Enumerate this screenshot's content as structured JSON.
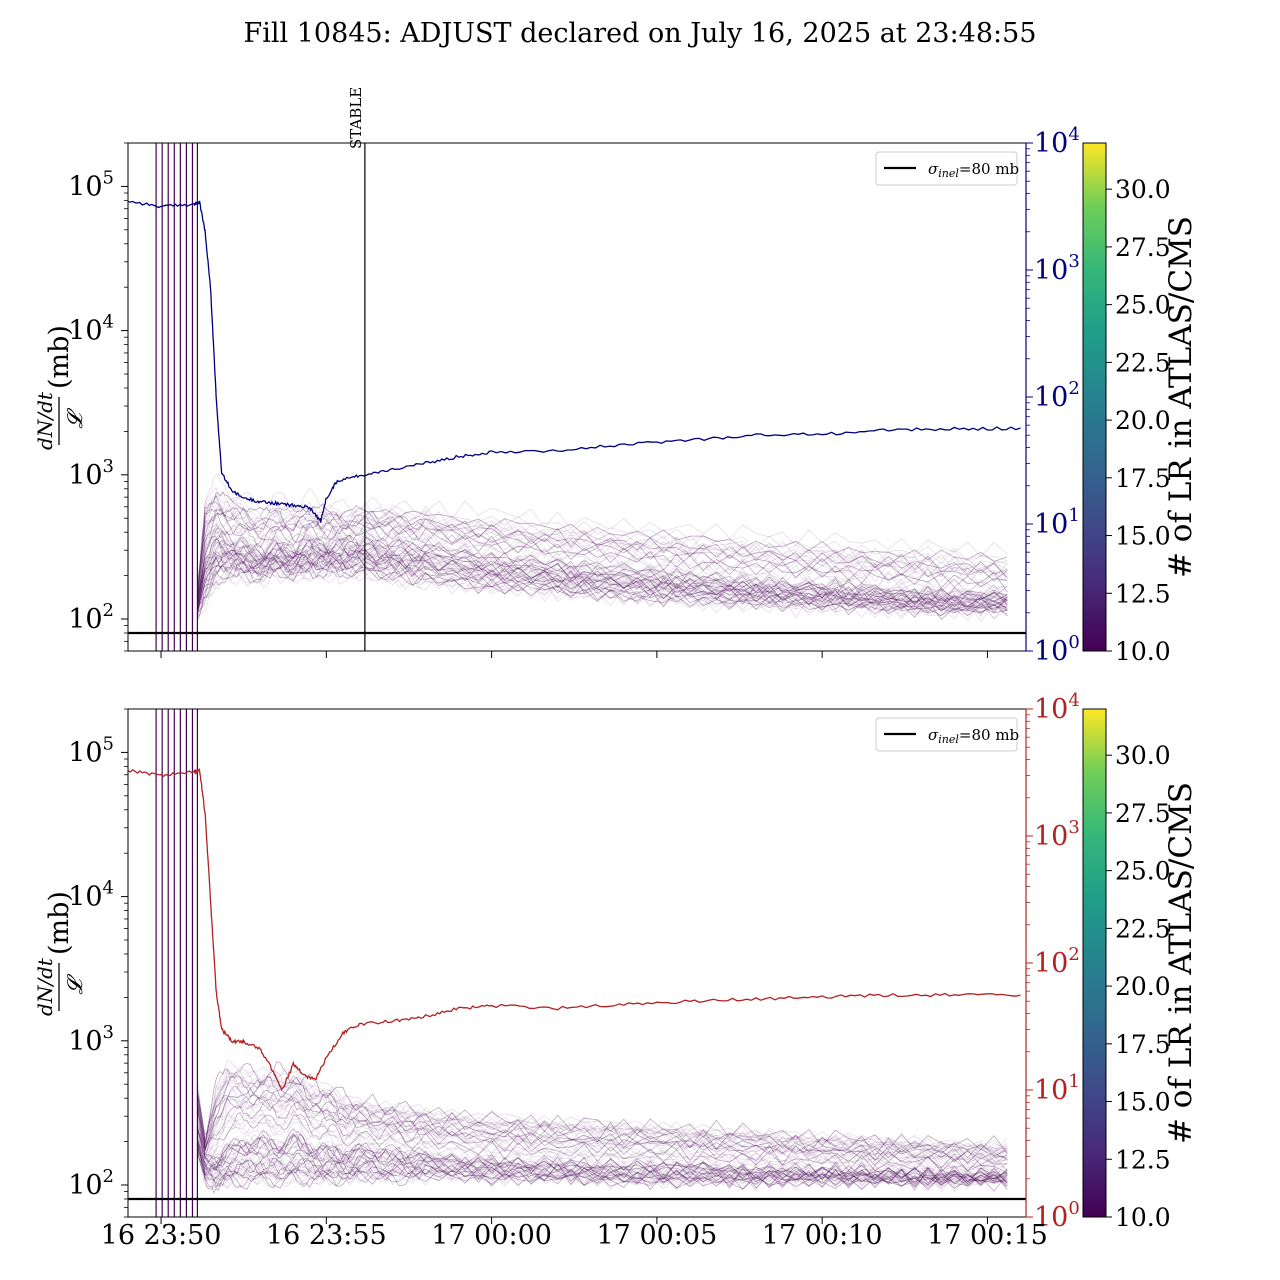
{
  "title": "Fill 10845: ADJUST declared on July 16, 2025 at 23:48:55",
  "colors": {
    "top_series": "#00007f",
    "bottom_series": "#b22222",
    "lr_lines": "#440154",
    "sigma_line": "#000000",
    "stable_line": "#000000"
  },
  "colorbar": {
    "label": "# of LR in ATLAS/CMS",
    "min": 10.0,
    "max": 32.0,
    "ticks": [
      "10.0",
      "12.5",
      "15.0",
      "17.5",
      "20.0",
      "22.5",
      "25.0",
      "27.5",
      "30.0"
    ],
    "tick_values": [
      10.0,
      12.5,
      15.0,
      17.5,
      20.0,
      22.5,
      25.0,
      27.5,
      30.0
    ],
    "colormap": "viridis"
  },
  "chart_data": [
    {
      "type": "line",
      "panel": "top",
      "ylabel_fraction_num": "dN/dt",
      "ylabel_fraction_den": "𝓛",
      "ylabel_unit": "(mb)",
      "yscale": "log",
      "ylim": [
        60,
        200000
      ],
      "ytick_bases": [
        "10",
        "10",
        "10",
        "10"
      ],
      "ytick_exps": [
        "2",
        "3",
        "4",
        "5"
      ],
      "ytick_values": [
        100,
        1000,
        10000,
        100000
      ],
      "right_yscale": "log",
      "right_ylim": [
        1,
        10000
      ],
      "right_tick_bases": [
        "10",
        "10",
        "10",
        "10",
        "10"
      ],
      "right_tick_exps": [
        "0",
        "1",
        "2",
        "3",
        "4"
      ],
      "right_tick_values": [
        1,
        10,
        100,
        1000,
        10000
      ],
      "right_color": "#00007f",
      "xlim": [
        "2025-07-16 23:49:00",
        "2025-07-17 00:16:10"
      ],
      "xtick_values": [
        "2025-07-16 23:50:00",
        "2025-07-16 23:55:00",
        "2025-07-17 00:00:00",
        "2025-07-17 00:05:00",
        "2025-07-17 00:10:00",
        "2025-07-17 00:15:00"
      ],
      "xtick_labels": [],
      "legend": {
        "label_sym": "σ",
        "label_sub": "inel",
        "label_rest": "=80 mb",
        "position": "upper-right"
      },
      "sigma_inel": 80,
      "stable_marker": {
        "label": "STABLE",
        "time": "2025-07-16 23:56:10"
      },
      "vertical_lines_times": [
        "2025-07-16 23:49:51",
        "2025-07-16 23:50:02",
        "2025-07-16 23:50:13",
        "2025-07-16 23:50:24",
        "2025-07-16 23:50:35",
        "2025-07-16 23:50:46",
        "2025-07-16 23:50:57",
        "2025-07-16 23:51:06"
      ],
      "series_right": {
        "color": "#00007f",
        "times": [
          "2025-07-16 23:49:00",
          "2025-07-16 23:50:00",
          "2025-07-16 23:51:00",
          "2025-07-16 23:51:10",
          "2025-07-16 23:51:20",
          "2025-07-16 23:51:30",
          "2025-07-16 23:51:40",
          "2025-07-16 23:51:50",
          "2025-07-16 23:52:10",
          "2025-07-16 23:52:30",
          "2025-07-16 23:53:00",
          "2025-07-16 23:53:30",
          "2025-07-16 23:54:00",
          "2025-07-16 23:54:30",
          "2025-07-16 23:54:50",
          "2025-07-16 23:55:00",
          "2025-07-16 23:55:20",
          "2025-07-16 23:56:00",
          "2025-07-16 23:57:00",
          "2025-07-16 23:58:00",
          "2025-07-16 23:59:00",
          "2025-07-17 00:00:00",
          "2025-07-17 00:02:00",
          "2025-07-17 00:04:00",
          "2025-07-17 00:06:00",
          "2025-07-17 00:08:00",
          "2025-07-17 00:10:00",
          "2025-07-17 00:12:00",
          "2025-07-17 00:14:00",
          "2025-07-17 00:16:00"
        ],
        "values": [
          3500,
          3150,
          3300,
          3400,
          2000,
          700,
          100,
          25,
          18,
          16,
          15,
          14.5,
          14,
          13.5,
          10.5,
          16,
          22,
          24,
          27,
          30,
          34,
          37,
          38,
          42,
          46,
          50,
          51,
          55,
          56,
          57
        ]
      },
      "lr_band": {
        "times": [
          "2025-07-16 23:51:06",
          "2025-07-16 23:51:20",
          "2025-07-16 23:51:40",
          "2025-07-16 23:52:00",
          "2025-07-16 23:52:30",
          "2025-07-16 23:53:00",
          "2025-07-16 23:53:30",
          "2025-07-16 23:54:00",
          "2025-07-16 23:54:30",
          "2025-07-16 23:55:00",
          "2025-07-16 23:55:30",
          "2025-07-16 23:56:00",
          "2025-07-16 23:57:00",
          "2025-07-16 23:58:00",
          "2025-07-17 00:00:00",
          "2025-07-17 00:02:00",
          "2025-07-17 00:04:00",
          "2025-07-17 00:06:00",
          "2025-07-17 00:08:00",
          "2025-07-17 00:10:00",
          "2025-07-17 00:12:00",
          "2025-07-17 00:14:00",
          "2025-07-17 00:16:00"
        ],
        "low": [
          110,
          130,
          180,
          200,
          200,
          190,
          210,
          200,
          210,
          210,
          200,
          210,
          190,
          180,
          160,
          150,
          140,
          130,
          125,
          120,
          115,
          110,
          115
        ],
        "median": [
          130,
          300,
          400,
          360,
          320,
          290,
          320,
          300,
          340,
          330,
          340,
          350,
          330,
          320,
          270,
          240,
          220,
          200,
          180,
          170,
          160,
          150,
          150
        ],
        "high": [
          160,
          700,
          900,
          800,
          700,
          650,
          700,
          650,
          700,
          650,
          600,
          650,
          620,
          600,
          550,
          500,
          460,
          430,
          400,
          370,
          340,
          320,
          300
        ]
      }
    },
    {
      "type": "line",
      "panel": "bottom",
      "ylabel_fraction_num": "dN/dt",
      "ylabel_fraction_den": "𝓛",
      "ylabel_unit": "(mb)",
      "yscale": "log",
      "ylim": [
        60,
        200000
      ],
      "ytick_bases": [
        "10",
        "10",
        "10",
        "10"
      ],
      "ytick_exps": [
        "2",
        "3",
        "4",
        "5"
      ],
      "ytick_values": [
        100,
        1000,
        10000,
        100000
      ],
      "right_yscale": "log",
      "right_ylim": [
        1,
        10000
      ],
      "right_tick_bases": [
        "10",
        "10",
        "10",
        "10",
        "10"
      ],
      "right_tick_exps": [
        "0",
        "1",
        "2",
        "3",
        "4"
      ],
      "right_tick_values": [
        1,
        10,
        100,
        1000,
        10000
      ],
      "right_color": "#b22222",
      "xlim": [
        "2025-07-16 23:49:00",
        "2025-07-17 00:16:10"
      ],
      "xtick_values": [
        "2025-07-16 23:50:00",
        "2025-07-16 23:55:00",
        "2025-07-17 00:00:00",
        "2025-07-17 00:05:00",
        "2025-07-17 00:10:00",
        "2025-07-17 00:15:00"
      ],
      "xtick_labels": [
        "16 23:50",
        "16 23:55",
        "17 00:00",
        "17 00:05",
        "17 00:10",
        "17 00:15"
      ],
      "legend": {
        "label_sym": "σ",
        "label_sub": "inel",
        "label_rest": "=80 mb",
        "position": "upper-right"
      },
      "sigma_inel": 80,
      "vertical_lines_times": [
        "2025-07-16 23:49:51",
        "2025-07-16 23:50:02",
        "2025-07-16 23:50:13",
        "2025-07-16 23:50:24",
        "2025-07-16 23:50:35",
        "2025-07-16 23:50:46",
        "2025-07-16 23:50:57",
        "2025-07-16 23:51:06"
      ],
      "series_right": {
        "color": "#b22222",
        "times": [
          "2025-07-16 23:49:00",
          "2025-07-16 23:50:00",
          "2025-07-16 23:51:00",
          "2025-07-16 23:51:10",
          "2025-07-16 23:51:20",
          "2025-07-16 23:51:30",
          "2025-07-16 23:51:40",
          "2025-07-16 23:51:50",
          "2025-07-16 23:52:10",
          "2025-07-16 23:52:30",
          "2025-07-16 23:53:00",
          "2025-07-16 23:53:20",
          "2025-07-16 23:53:40",
          "2025-07-16 23:54:00",
          "2025-07-16 23:54:20",
          "2025-07-16 23:54:40",
          "2025-07-16 23:55:00",
          "2025-07-16 23:55:30",
          "2025-07-16 23:56:00",
          "2025-07-16 23:57:00",
          "2025-07-16 23:58:00",
          "2025-07-16 23:59:00",
          "2025-07-17 00:00:00",
          "2025-07-17 00:02:00",
          "2025-07-17 00:04:00",
          "2025-07-17 00:06:00",
          "2025-07-17 00:08:00",
          "2025-07-17 00:10:00",
          "2025-07-17 00:12:00",
          "2025-07-17 00:14:00",
          "2025-07-17 00:16:00"
        ],
        "values": [
          3300,
          3000,
          3200,
          3300,
          1500,
          300,
          60,
          30,
          24,
          24,
          21,
          15,
          10,
          16,
          13,
          12,
          18,
          28,
          33,
          35,
          38,
          44,
          46,
          44,
          47,
          50,
          52,
          54,
          56,
          56,
          56
        ]
      },
      "lr_band": {
        "times": [
          "2025-07-16 23:51:06",
          "2025-07-16 23:51:20",
          "2025-07-16 23:51:40",
          "2025-07-16 23:52:00",
          "2025-07-16 23:52:30",
          "2025-07-16 23:53:00",
          "2025-07-16 23:53:30",
          "2025-07-16 23:54:00",
          "2025-07-16 23:54:30",
          "2025-07-16 23:55:00",
          "2025-07-16 23:55:30",
          "2025-07-16 23:56:00",
          "2025-07-16 23:57:00",
          "2025-07-16 23:58:00",
          "2025-07-17 00:00:00",
          "2025-07-17 00:02:00",
          "2025-07-17 00:04:00",
          "2025-07-17 00:06:00",
          "2025-07-17 00:08:00",
          "2025-07-17 00:10:00",
          "2025-07-17 00:12:00",
          "2025-07-17 00:14:00",
          "2025-07-17 00:16:00"
        ],
        "low": [
          180,
          110,
          100,
          105,
          105,
          110,
          105,
          110,
          110,
          110,
          110,
          115,
          110,
          115,
          110,
          110,
          105,
          105,
          105,
          105,
          105,
          105,
          105
        ],
        "median": [
          250,
          150,
          160,
          200,
          210,
          240,
          200,
          250,
          200,
          190,
          180,
          190,
          180,
          170,
          150,
          145,
          140,
          140,
          130,
          130,
          125,
          120,
          120
        ],
        "high": [
          500,
          200,
          500,
          700,
          650,
          600,
          650,
          600,
          520,
          500,
          420,
          380,
          360,
          330,
          300,
          280,
          270,
          250,
          240,
          220,
          210,
          200,
          190
        ]
      }
    }
  ]
}
